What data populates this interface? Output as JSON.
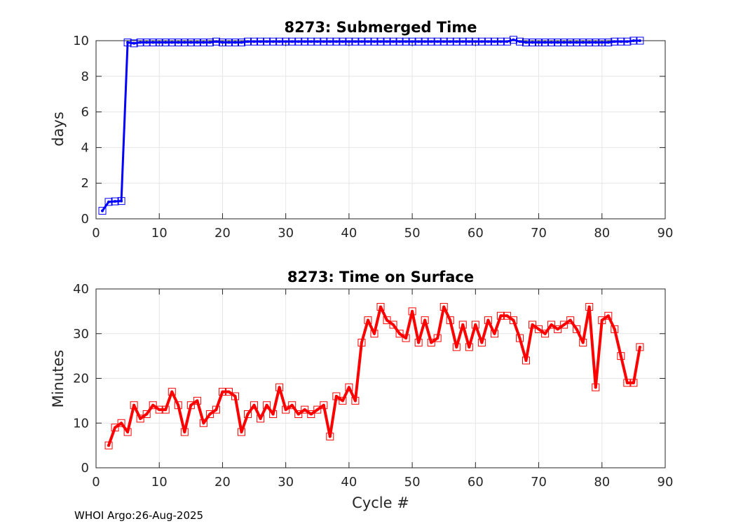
{
  "footer": "WHOI Argo:26-Aug-2025",
  "chart_data": [
    {
      "type": "line",
      "title": "8273: Submerged Time",
      "xlabel": "",
      "ylabel": "days",
      "xlim": [
        0,
        90
      ],
      "ylim": [
        0,
        10
      ],
      "xticks": [
        0,
        10,
        20,
        30,
        40,
        50,
        60,
        70,
        80,
        90
      ],
      "yticks": [
        0,
        2,
        4,
        6,
        8,
        10
      ],
      "grid": true,
      "color": "#0000ff",
      "marker": "square",
      "x": [
        1,
        2,
        3,
        4,
        5,
        6,
        7,
        8,
        9,
        10,
        11,
        12,
        13,
        14,
        15,
        16,
        17,
        18,
        19,
        20,
        21,
        22,
        23,
        24,
        25,
        26,
        27,
        28,
        29,
        30,
        31,
        32,
        33,
        34,
        35,
        36,
        37,
        38,
        39,
        40,
        41,
        42,
        43,
        44,
        45,
        46,
        47,
        48,
        49,
        50,
        51,
        52,
        53,
        54,
        55,
        56,
        57,
        58,
        59,
        60,
        61,
        62,
        63,
        64,
        65,
        66,
        67,
        68,
        69,
        70,
        71,
        72,
        73,
        74,
        75,
        76,
        77,
        78,
        79,
        80,
        81,
        82,
        83,
        84,
        85,
        86
      ],
      "y": [
        0.45,
        0.95,
        0.98,
        1.0,
        9.9,
        9.85,
        9.9,
        9.9,
        9.9,
        9.9,
        9.9,
        9.9,
        9.9,
        9.9,
        9.9,
        9.9,
        9.9,
        9.9,
        9.95,
        9.9,
        9.9,
        9.9,
        9.9,
        9.95,
        9.95,
        9.95,
        9.95,
        9.95,
        9.95,
        9.95,
        9.95,
        9.95,
        9.95,
        9.95,
        9.95,
        9.95,
        9.95,
        9.95,
        9.95,
        9.95,
        9.95,
        9.95,
        9.95,
        9.95,
        9.95,
        9.95,
        9.95,
        9.95,
        9.95,
        9.95,
        9.95,
        9.95,
        9.95,
        9.95,
        9.95,
        9.95,
        9.95,
        9.95,
        9.95,
        9.95,
        9.95,
        9.95,
        9.95,
        9.95,
        9.95,
        10.05,
        9.95,
        9.9,
        9.9,
        9.9,
        9.9,
        9.9,
        9.9,
        9.9,
        9.9,
        9.9,
        9.9,
        9.9,
        9.9,
        9.9,
        9.9,
        9.95,
        9.95,
        9.95,
        10.0,
        10.0
      ]
    },
    {
      "type": "line",
      "title": "8273: Time on Surface",
      "xlabel": "Cycle #",
      "ylabel": "Minutes",
      "xlim": [
        0,
        90
      ],
      "ylim": [
        0,
        40
      ],
      "xticks": [
        0,
        10,
        20,
        30,
        40,
        50,
        60,
        70,
        80,
        90
      ],
      "yticks": [
        0,
        10,
        20,
        30,
        40
      ],
      "grid": true,
      "color": "#ff0000",
      "marker": "square",
      "x": [
        2,
        3,
        4,
        5,
        6,
        7,
        8,
        9,
        10,
        11,
        12,
        13,
        14,
        15,
        16,
        17,
        18,
        19,
        20,
        21,
        22,
        23,
        24,
        25,
        26,
        27,
        28,
        29,
        30,
        31,
        32,
        33,
        34,
        35,
        36,
        37,
        38,
        39,
        40,
        41,
        42,
        43,
        44,
        45,
        46,
        47,
        48,
        49,
        50,
        51,
        52,
        53,
        54,
        55,
        56,
        57,
        58,
        59,
        60,
        61,
        62,
        63,
        64,
        65,
        66,
        67,
        68,
        69,
        70,
        71,
        72,
        73,
        74,
        75,
        76,
        77,
        78,
        79,
        80,
        81,
        82,
        83,
        84,
        85,
        86
      ],
      "y": [
        5,
        9,
        10,
        8,
        14,
        11,
        12,
        14,
        13,
        13,
        17,
        14,
        8,
        14,
        15,
        10,
        12,
        13,
        17,
        17,
        16,
        8,
        12,
        14,
        11,
        14,
        12,
        18,
        13,
        14,
        12,
        13,
        12,
        13,
        14,
        7,
        16,
        15,
        18,
        15,
        28,
        33,
        30,
        36,
        33,
        32,
        30,
        29,
        35,
        28,
        33,
        28,
        29,
        36,
        33,
        27,
        32,
        27,
        32,
        28,
        33,
        30,
        34,
        34,
        33,
        29,
        24,
        32,
        31,
        30,
        32,
        31,
        32,
        33,
        31,
        28,
        36,
        18,
        33,
        34,
        31,
        25,
        19,
        19,
        27
      ]
    }
  ]
}
